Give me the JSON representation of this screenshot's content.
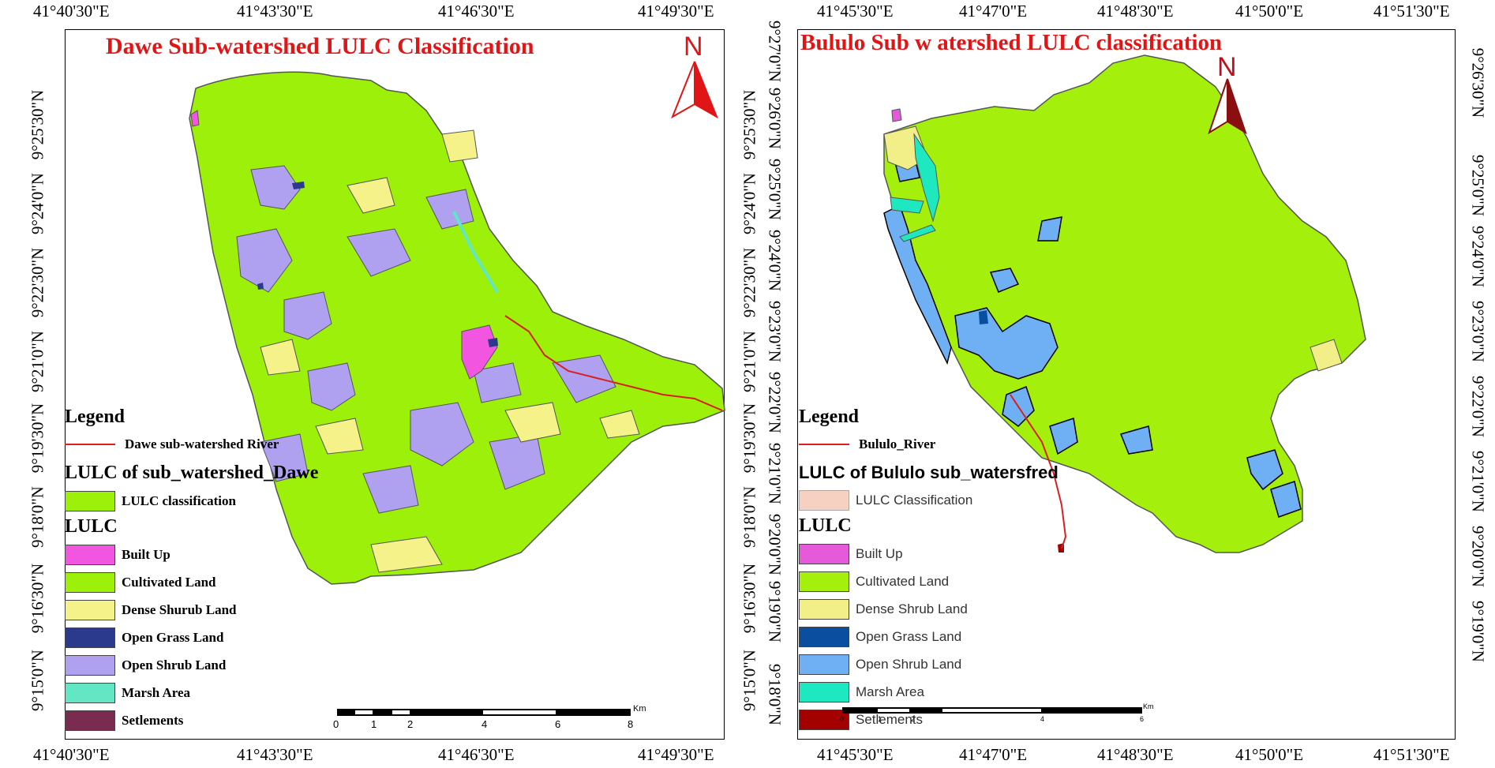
{
  "left_map": {
    "title": "Dawe Sub-watershed LULC Classification",
    "north": "N",
    "top_coords": [
      "41°40'30\"E",
      "41°43'30\"E",
      "41°46'30\"E",
      "41°49'30\"E"
    ],
    "bottom_coords": [
      "41°40'30\"E",
      "41°43'30\"E",
      "41°46'30\"E",
      "41°49'30\"E"
    ],
    "left_coords": [
      "9°15'0\"N",
      "9°16'30\"N",
      "9°18'0\"N",
      "9°19'30\"N",
      "9°21'0\"N",
      "9°22'30\"N",
      "9°24'0\"N",
      "9°25'30\"N"
    ],
    "right_coords": [
      "9°15'0\"N",
      "9°16'30\"N",
      "9°18'0\"N",
      "9°19'30\"N",
      "9°21'0\"N",
      "9°22'30\"N",
      "9°24'0\"N",
      "9°25'30\"N"
    ],
    "legend": {
      "heading": "Legend",
      "river": "Dawe sub-watershed River",
      "lulc_of": "LULC of sub_watershed_Dawe",
      "classification": "LULC classification",
      "lulc": "LULC",
      "classes": [
        {
          "label": "Built Up",
          "color": "#f256e0"
        },
        {
          "label": "Cultivated Land",
          "color": "#9cf00a"
        },
        {
          "label": "Dense Shurub Land",
          "color": "#f6f28a"
        },
        {
          "label": "Open Grass Land",
          "color": "#2c3a8e"
        },
        {
          "label": "Open Shrub Land",
          "color": "#b0a0f0"
        },
        {
          "label": "Marsh Area",
          "color": "#62e6c4"
        },
        {
          "label": "Setlements",
          "color": "#7a2c50"
        }
      ]
    },
    "scale": {
      "labels": [
        "0",
        "1",
        "2",
        "4",
        "6",
        "8"
      ],
      "unit": "Km"
    }
  },
  "right_map": {
    "title": "Bululo Sub w atershed  LULC classification",
    "north": "N",
    "top_coords": [
      "41°45'30\"E",
      "41°47'0\"E",
      "41°48'30\"E",
      "41°50'0\"E",
      "41°51'30\"E"
    ],
    "bottom_coords": [
      "41°45'30\"E",
      "41°47'0\"E",
      "41°48'30\"E",
      "41°50'0\"E",
      "41°51'30\"E"
    ],
    "left_coords": [
      "9°18'0\"N",
      "9°19'0\"N",
      "9°20'0\"N",
      "9°21'0\"N",
      "9°22'0\"N",
      "9°23'0\"N",
      "9°24'0\"N",
      "9°25'0\"N",
      "9°26'0\"N",
      "9°27'0\"N"
    ],
    "right_coords": [
      "9°19'0\"N",
      "9°20'0\"N",
      "9°21'0\"N",
      "9°22'0\"N",
      "9°23'0\"N",
      "9°24'0\"N",
      "9°25'0\"N",
      "9°26'30\"N"
    ],
    "legend": {
      "heading": "Legend",
      "river": "Bululo_River",
      "lulc_of": "LULC of  Bululo sub_watersfred",
      "classification": "LULC Classification",
      "lulc": "LULC",
      "classes": [
        {
          "label": "Built Up",
          "color": "#e45ad8"
        },
        {
          "label": "Cultivated Land",
          "color": "#a4f00c"
        },
        {
          "label": "Dense Shrub Land",
          "color": "#f2ee88"
        },
        {
          "label": "Open Grass Land",
          "color": "#0a4ea0"
        },
        {
          "label": "Open Shrub Land",
          "color": "#6fb0f4"
        },
        {
          "label": " Marsh Area",
          "color": "#1ee8c0"
        },
        {
          "label": "Setlements",
          "color": "#a40000"
        }
      ],
      "classification_color": "#f6d0c0"
    },
    "scale": {
      "labels": [
        "0",
        "1",
        "2",
        "4",
        "6"
      ],
      "unit": "Km"
    }
  }
}
